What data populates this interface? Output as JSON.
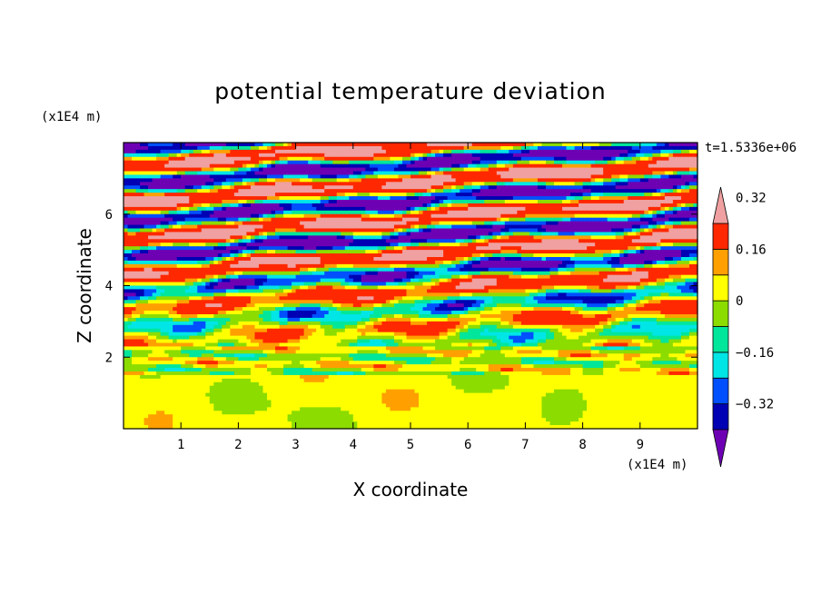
{
  "chart_data": {
    "type": "heatmap",
    "title": "potential temperature deviation",
    "xlabel": "X coordinate",
    "ylabel": "Z coordinate",
    "x_scale_label": "(x1E4 m)",
    "y_scale_label": "(x1E4 m)",
    "time_label": "t=1.5336e+06",
    "xlim": [
      0,
      10
    ],
    "ylim": [
      0,
      8
    ],
    "x_ticks": [
      "1",
      "2",
      "3",
      "4",
      "5",
      "6",
      "7",
      "8",
      "9"
    ],
    "y_ticks": [
      "2",
      "4",
      "6"
    ],
    "colorbar": {
      "levels": [
        -0.4,
        -0.32,
        -0.24,
        -0.16,
        -0.08,
        0,
        0.08,
        0.16,
        0.24,
        0.32,
        0.4
      ],
      "tick_labels": [
        "0.32",
        "0.16",
        "0",
        "−0.16",
        "−0.32"
      ],
      "tick_values": [
        0.32,
        0.16,
        0,
        -0.16,
        -0.32
      ],
      "colors_low_to_high": [
        "#0000b4",
        "#0050ff",
        "#00e6e6",
        "#00e69b",
        "#8cdc00",
        "#ffff00",
        "#ffa000",
        "#ff2800"
      ],
      "under_color": "#6e00b4",
      "over_color": "#f0a0a0"
    }
  }
}
